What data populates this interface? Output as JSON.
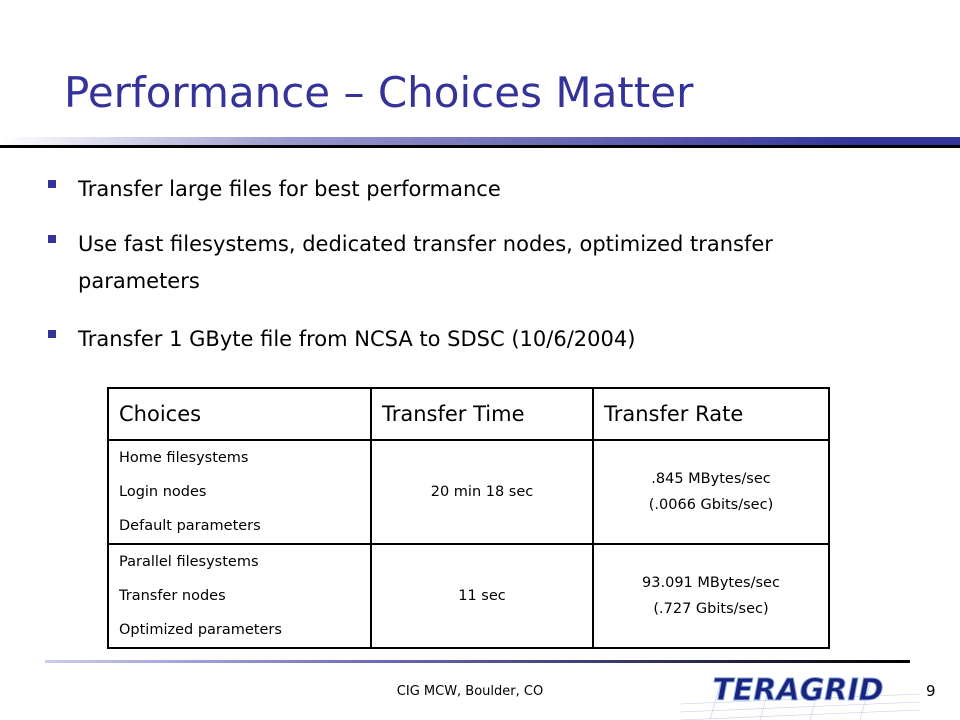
{
  "header": {
    "title": "Performance – Choices Matter"
  },
  "bullets": [
    "Transfer large files for best performance",
    "Use fast filesystems, dedicated transfer nodes, optimized transfer parameters",
    "Transfer 1 GByte file from NCSA to SDSC (10/6/2004)"
  ],
  "table": {
    "headers": [
      "Choices",
      "Transfer Time",
      "Transfer Rate"
    ],
    "rows": [
      [
        [
          "Home filesystems",
          "Login nodes",
          "Default parameters"
        ],
        "20 min 18 sec",
        [
          ".845 MBytes/sec",
          "(.0066 Gbits/sec)"
        ]
      ],
      [
        [
          "Parallel filesystems",
          "Transfer nodes",
          "Optimized parameters"
        ],
        "11 sec",
        [
          "93.091 MBytes/sec",
          "(.727 Gbits/sec)"
        ]
      ]
    ]
  },
  "footer": {
    "text": "CIG MCW, Boulder, CO",
    "page": "9",
    "logo": "TERAGRID"
  }
}
